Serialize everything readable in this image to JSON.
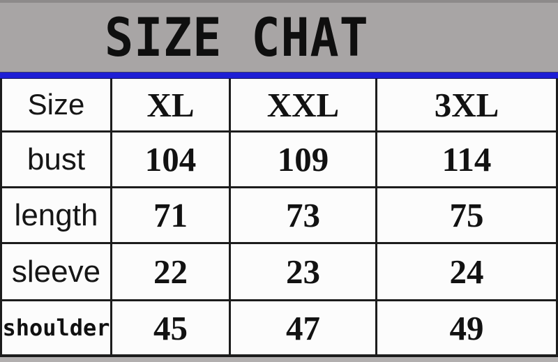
{
  "banner": {
    "title": "SIZE CHAT"
  },
  "table": {
    "header": {
      "label": "Size",
      "cols": [
        "XL",
        "XXL",
        "3XL"
      ]
    },
    "rows": [
      {
        "label": "bust",
        "values": [
          "104",
          "109",
          "114"
        ]
      },
      {
        "label": "length",
        "values": [
          "71",
          "73",
          "75"
        ]
      },
      {
        "label": "sleeve",
        "values": [
          "22",
          "23",
          "24"
        ]
      },
      {
        "label": "shoulder",
        "values": [
          "45",
          "47",
          "49"
        ]
      }
    ]
  },
  "colors": {
    "banner_gray": "#a8a5a5",
    "divider_blue": "#1e1ed5",
    "gridline_black": "#1c1c1c",
    "cell_white": "#fcfcfc"
  },
  "chart_data": {
    "type": "table",
    "title": "SIZE CHAT",
    "columns": [
      "Size",
      "XL",
      "XXL",
      "3XL"
    ],
    "rows": [
      [
        "bust",
        104,
        109,
        114
      ],
      [
        "length",
        71,
        73,
        75
      ],
      [
        "sleeve",
        22,
        23,
        24
      ],
      [
        "shoulder",
        45,
        47,
        49
      ]
    ]
  }
}
